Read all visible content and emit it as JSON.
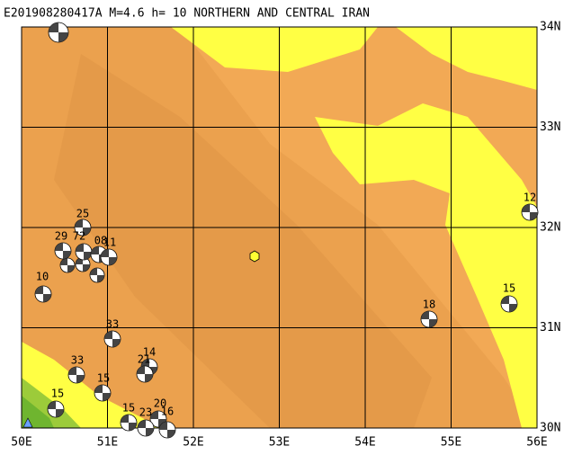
{
  "header": {
    "title": "E201908280417A M=4.6 h= 10 NORTHERN AND CENTRAL IRAN"
  },
  "x_axis_labels": [
    "50E",
    "51E",
    "52E",
    "53E",
    "54E",
    "55E",
    "56E"
  ],
  "y_axis_labels": [
    "34N",
    "33N",
    "32N",
    "31N",
    "30N"
  ],
  "events": [
    {
      "depth": "25"
    },
    {
      "depth": "29"
    },
    {
      "depth": "72"
    },
    {
      "depth": "08"
    },
    {
      "depth": "11"
    },
    {
      "depth": "10"
    },
    {
      "depth": "33"
    },
    {
      "depth": "14"
    },
    {
      "depth": "21"
    },
    {
      "depth": "33"
    },
    {
      "depth": "15"
    },
    {
      "depth": "15"
    },
    {
      "depth": "15"
    },
    {
      "depth": "20"
    },
    {
      "depth": "23"
    },
    {
      "depth": "16"
    },
    {
      "depth": "18"
    },
    {
      "depth": "15"
    },
    {
      "depth": "12"
    }
  ]
}
